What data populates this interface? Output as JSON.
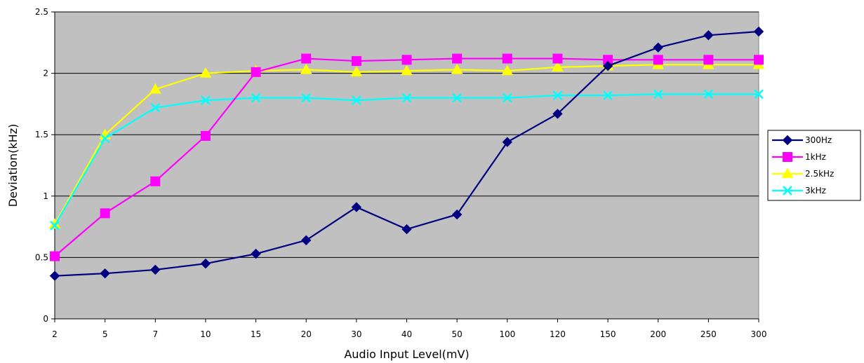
{
  "chart_data": {
    "type": "line",
    "title": "",
    "xlabel": "Audio Input Level(mV)",
    "ylabel": "Deviation(kHz)",
    "categories": [
      "2",
      "5",
      "7",
      "10",
      "15",
      "20",
      "30",
      "40",
      "50",
      "100",
      "120",
      "150",
      "200",
      "250",
      "300"
    ],
    "ylim": [
      0,
      2.5
    ],
    "yticks": [
      "0",
      "0.5",
      "1",
      "1.5",
      "2",
      "2.5"
    ],
    "grid": "horizontal",
    "plot_background": "#c0c0c0",
    "legend_position": "right",
    "series": [
      {
        "name": "300Hz",
        "color": "#000080",
        "marker": "diamond",
        "values": [
          0.35,
          0.37,
          0.4,
          0.45,
          0.53,
          0.64,
          0.91,
          0.73,
          0.85,
          1.44,
          1.67,
          2.06,
          2.21,
          2.31,
          2.34
        ]
      },
      {
        "name": "1kHz",
        "color": "#ff00ff",
        "marker": "square",
        "values": [
          0.51,
          0.86,
          1.12,
          1.49,
          2.01,
          2.12,
          2.1,
          2.11,
          2.12,
          2.12,
          2.12,
          2.11,
          2.11,
          2.11,
          2.11
        ]
      },
      {
        "name": "2.5kHz",
        "color": "#ffff00",
        "marker": "triangle",
        "values": [
          0.77,
          1.5,
          1.87,
          2.0,
          2.02,
          2.03,
          2.01,
          2.02,
          2.03,
          2.02,
          2.05,
          2.06,
          2.07,
          2.07,
          2.07
        ]
      },
      {
        "name": "3kHz",
        "color": "#00ffff",
        "marker": "x",
        "values": [
          0.76,
          1.47,
          1.72,
          1.78,
          1.8,
          1.8,
          1.78,
          1.8,
          1.8,
          1.8,
          1.82,
          1.82,
          1.83,
          1.83,
          1.83
        ]
      }
    ]
  }
}
